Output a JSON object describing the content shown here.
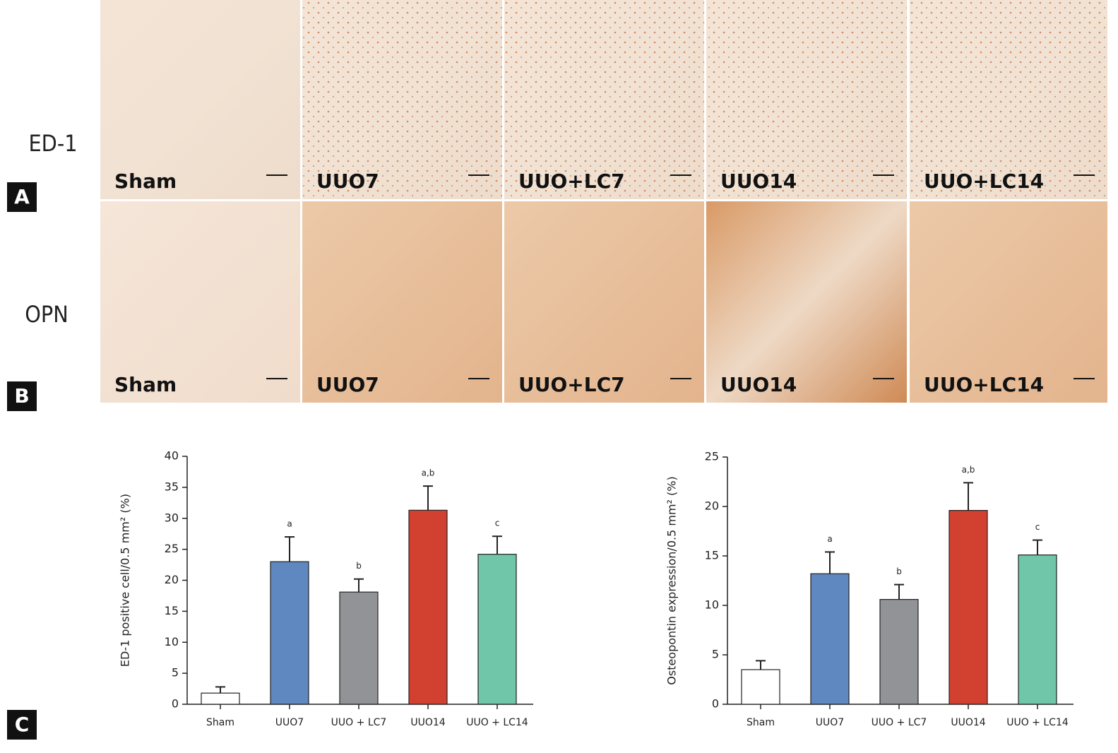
{
  "figure": {
    "panel_labels": [
      "A",
      "B",
      "C"
    ],
    "rows": [
      {
        "label": "ED-1",
        "images": [
          "Sham",
          "UUO7",
          "UUO+LC7",
          "UUO14",
          "UUO+LC14"
        ]
      },
      {
        "label": "OPN",
        "images": [
          "Sham",
          "UUO7",
          "UUO+LC7",
          "UUO14",
          "UUO+LC14"
        ]
      }
    ]
  },
  "chart_data": [
    {
      "type": "bar",
      "y_label": "ED-1 positive cell/0.5 mm² (%)",
      "categories": [
        "Sham",
        "UUO7",
        "UUO + LC7",
        "UUO14",
        "UUO + LC14"
      ],
      "values": [
        1.8,
        23.0,
        18.1,
        31.3,
        24.2
      ],
      "errors": [
        1.0,
        4.0,
        2.1,
        3.9,
        2.9
      ],
      "annotations": [
        null,
        "a",
        "b",
        "a,b",
        "c"
      ],
      "colors": [
        "#ffffff",
        "#5f87c0",
        "#929396",
        "#d2402f",
        "#6fc6a9"
      ],
      "ylim": [
        0,
        40
      ],
      "yticks": [
        0,
        5,
        10,
        15,
        20,
        25,
        30,
        35,
        40
      ]
    },
    {
      "type": "bar",
      "y_label": "Osteopontin expression/0.5 mm² (%)",
      "categories": [
        "Sham",
        "UUO7",
        "UUO + LC7",
        "UUO14",
        "UUO + LC14"
      ],
      "values": [
        3.5,
        13.2,
        10.6,
        19.6,
        15.1
      ],
      "errors": [
        0.9,
        2.2,
        1.5,
        2.8,
        1.5
      ],
      "annotations": [
        null,
        "a",
        "b",
        "a,b",
        "c"
      ],
      "colors": [
        "#ffffff",
        "#5f87c0",
        "#929396",
        "#d2402f",
        "#6fc6a9"
      ],
      "ylim": [
        0,
        25
      ],
      "yticks": [
        0,
        5,
        10,
        15,
        20,
        25
      ]
    }
  ]
}
